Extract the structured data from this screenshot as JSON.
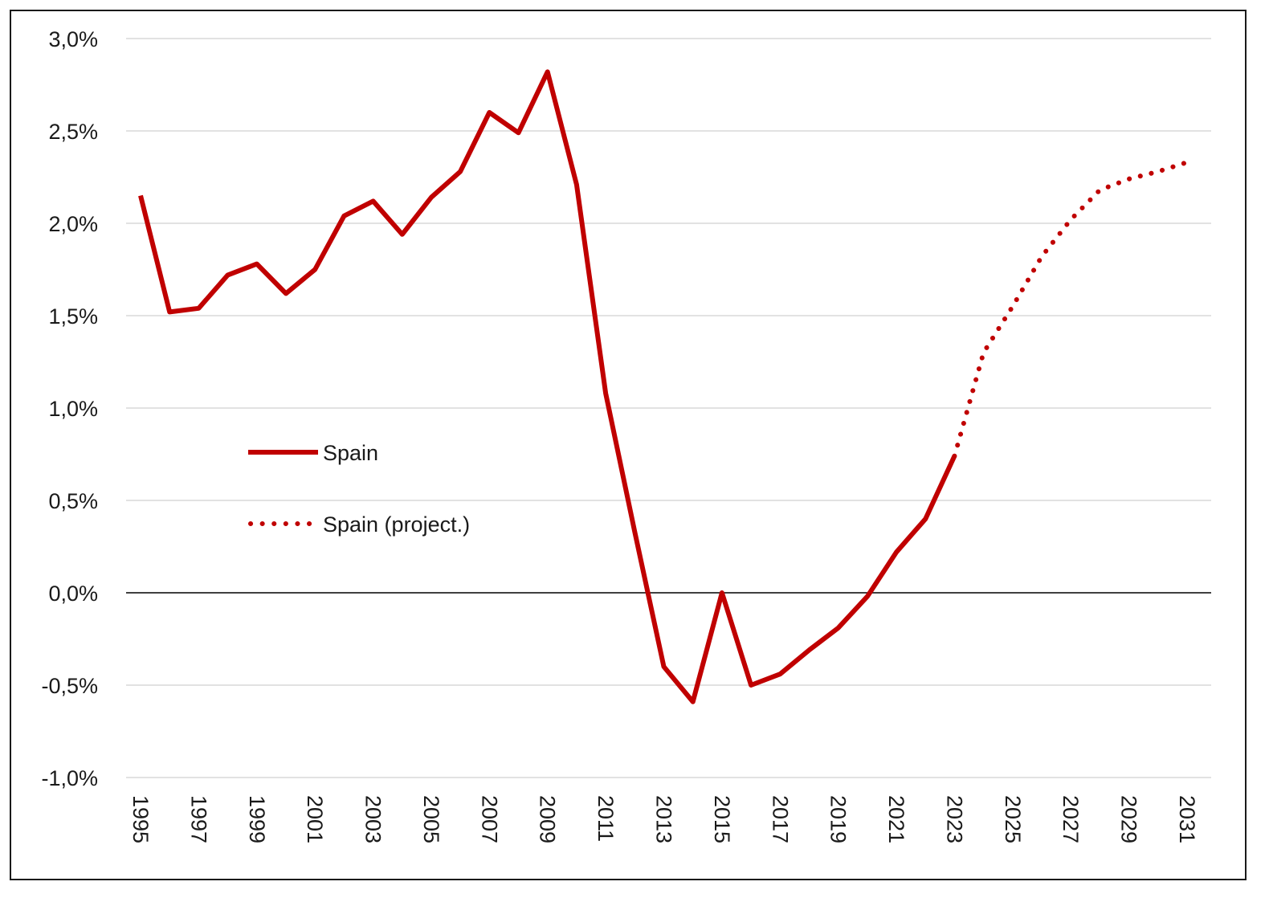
{
  "chart_data": {
    "type": "line",
    "title": "",
    "xlabel": "",
    "ylabel": "",
    "ylim": [
      -1.0,
      3.0
    ],
    "y_ticks": [
      -1.0,
      -0.5,
      0.0,
      0.5,
      1.0,
      1.5,
      2.0,
      2.5,
      3.0
    ],
    "y_tick_labels": [
      "-1,0%",
      "-0,5%",
      "0,0%",
      "0,5%",
      "1,0%",
      "1,5%",
      "2,0%",
      "2,5%",
      "3,0%"
    ],
    "x_ticks": [
      1995,
      1997,
      1999,
      2001,
      2003,
      2005,
      2007,
      2009,
      2011,
      2013,
      2015,
      2017,
      2019,
      2021,
      2023,
      2025,
      2027,
      2029,
      2031
    ],
    "x_tick_labels": [
      "1995",
      "1997",
      "1999",
      "2001",
      "2003",
      "2005",
      "2007",
      "2009",
      "2011",
      "2013",
      "2015",
      "2017",
      "2019",
      "2021",
      "2023",
      "2025",
      "2027",
      "2029",
      "2031"
    ],
    "xlim": [
      1995,
      2031
    ],
    "grid": true,
    "legend_position": "center-left",
    "series": [
      {
        "name": "Spain",
        "style": "solid",
        "color": "#c00000",
        "x": [
          1995,
          1996,
          1997,
          1998,
          1999,
          2000,
          2001,
          2002,
          2003,
          2004,
          2005,
          2006,
          2007,
          2008,
          2009,
          2010,
          2011,
          2012,
          2013,
          2014,
          2015,
          2016,
          2017,
          2018,
          2019,
          2020,
          2021,
          2022,
          2023
        ],
        "y": [
          2.15,
          1.52,
          1.54,
          1.72,
          1.78,
          1.62,
          1.75,
          2.04,
          2.12,
          1.94,
          2.14,
          2.28,
          2.6,
          2.49,
          2.82,
          2.21,
          1.08,
          0.33,
          -0.4,
          -0.59,
          0.0,
          -0.5,
          -0.44,
          -0.31,
          -0.19,
          -0.02,
          0.22,
          0.4,
          0.74
        ]
      },
      {
        "name": "Spain (project.)",
        "style": "dotted",
        "color": "#c00000",
        "x": [
          2023,
          2024,
          2025,
          2026,
          2027,
          2028,
          2029,
          2030,
          2031
        ],
        "y": [
          0.74,
          1.3,
          1.55,
          1.82,
          2.02,
          2.18,
          2.24,
          2.28,
          2.33
        ]
      }
    ]
  }
}
